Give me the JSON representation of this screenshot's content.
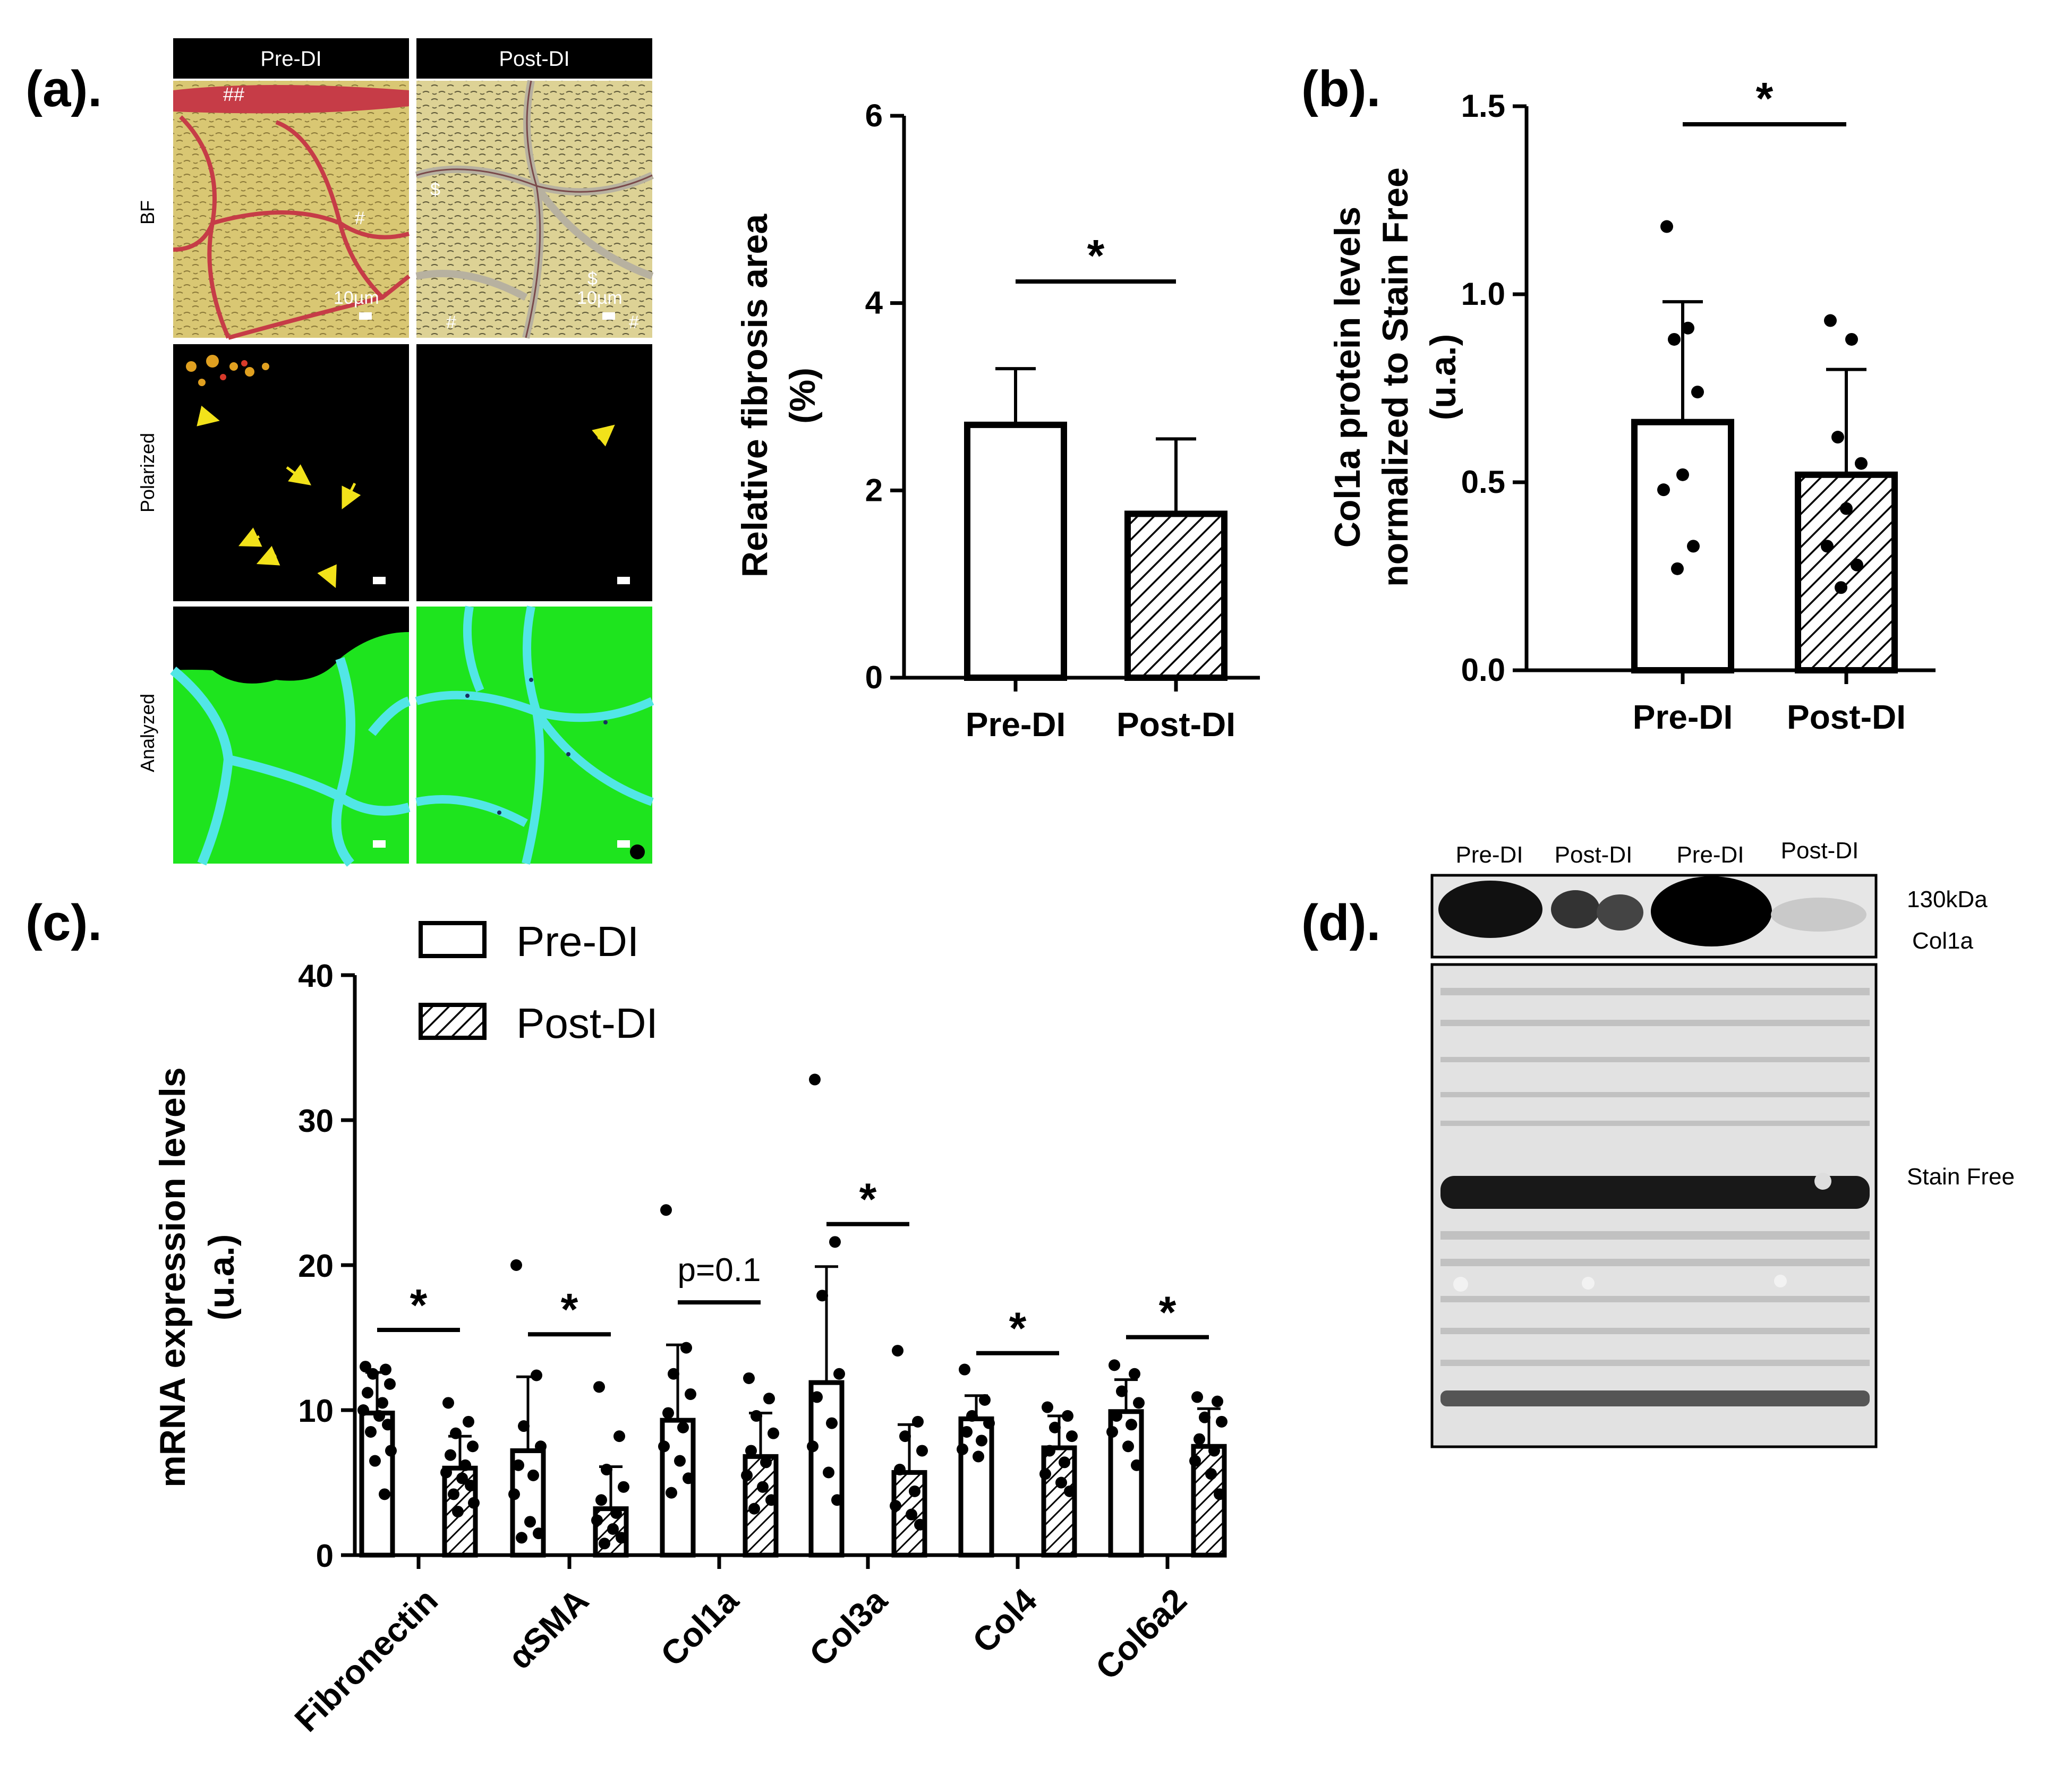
{
  "panel_labels": {
    "a": "(a).",
    "b": "(b).",
    "c": "(c).",
    "d": "(d)."
  },
  "histology": {
    "columns": [
      "Pre-DI",
      "Post-DI"
    ],
    "rows": [
      "BF",
      "Polarized",
      "Analyzed"
    ],
    "overlay_marks": {
      "double_hash": "##",
      "hash": "#",
      "dollar": "$"
    },
    "scale_bar": "10µm",
    "colors": {
      "bf_background": "#d9c773",
      "bf_collagen": "#c63c47",
      "polarized_background": "#000000",
      "arrow": "#f2e21a",
      "analyzed_fiber": "#1ee41e",
      "analyzed_collagen": "#52e6e6"
    }
  },
  "chart_data": [
    {
      "panel": "a",
      "type": "bar",
      "categories": [
        "Pre-DI",
        "Post-DI"
      ],
      "values": [
        2.7,
        1.75
      ],
      "errors": [
        0.6,
        0.8
      ],
      "fill_patterns": [
        "open",
        "hatched"
      ],
      "ylabel": "Relative fibrosis area (%)",
      "ylabel_lines": [
        "Relative fibrosis area",
        "(%)"
      ],
      "ylim": [
        0,
        6
      ],
      "yticks": [
        0,
        2,
        4,
        6
      ],
      "significance": [
        {
          "between": [
            "Pre-DI",
            "Post-DI"
          ],
          "label": "*"
        }
      ]
    },
    {
      "panel": "b",
      "type": "bar",
      "categories": [
        "Pre-DI",
        "Post-DI"
      ],
      "values": [
        0.66,
        0.52
      ],
      "errors": [
        0.32,
        0.28
      ],
      "points": [
        [
          1.18,
          0.91,
          0.88,
          0.74,
          0.52,
          0.48,
          0.33,
          0.27
        ],
        [
          0.93,
          0.88,
          0.62,
          0.55,
          0.43,
          0.33,
          0.28,
          0.22
        ]
      ],
      "fill_patterns": [
        "open",
        "hatched"
      ],
      "ylabel": "Col1a protein levels normalized to Stain Free (u.a.)",
      "ylabel_lines": [
        "Col1a protein levels",
        "normalized to Stain Free",
        "(u.a.)"
      ],
      "ylim": [
        0,
        1.5
      ],
      "yticks": [
        "0.0",
        "0.5",
        "1.0",
        "1.5"
      ],
      "significance": [
        {
          "between": [
            "Pre-DI",
            "Post-DI"
          ],
          "label": "*"
        }
      ]
    },
    {
      "panel": "c",
      "type": "bar",
      "categories": [
        "Fibronectin",
        "αSMA",
        "Col1a",
        "Col3a",
        "Col4",
        "Col6a2"
      ],
      "series": [
        {
          "name": "Pre-DI",
          "values": [
            9.8,
            7.2,
            9.3,
            11.9,
            9.4,
            9.9
          ],
          "errors": [
            2.8,
            5.1,
            5.2,
            8.0,
            1.6,
            2.2
          ],
          "points": [
            [
              13,
              12.8,
              12.5,
              11.8,
              11.2,
              10.5,
              10,
              9.6,
              9,
              8.5,
              7.2,
              6.5,
              4.2
            ],
            [
              20,
              12.4,
              8.9,
              7.5,
              6.2,
              5.5,
              4.2,
              2.3,
              1.5,
              1.2
            ],
            [
              23.8,
              14.3,
              12.5,
              11.1,
              9.8,
              8.8,
              7.5,
              6.5,
              5.3,
              4.3
            ],
            [
              32.8,
              21.6,
              17.9,
              12.5,
              10.9,
              9.1,
              7.5,
              5.7,
              3.8
            ],
            [
              12.8,
              10.7,
              9.6,
              9.1,
              8.5,
              7.9,
              7.3,
              6.8
            ],
            [
              13.1,
              12.5,
              11.3,
              10.5,
              9.6,
              9,
              8.5,
              7.5,
              6.2
            ]
          ]
        },
        {
          "name": "Post-DI",
          "values": [
            6.0,
            3.2,
            6.8,
            5.7,
            7.4,
            7.5
          ],
          "errors": [
            2.2,
            2.9,
            3.0,
            3.3,
            2.2,
            2.6
          ],
          "points": [
            [
              10.5,
              9.2,
              8.4,
              7.5,
              6.9,
              6.2,
              5.7,
              5.3,
              4.8,
              4.2,
              3.6,
              3.0
            ],
            [
              11.6,
              8.2,
              5.9,
              4.7,
              3.8,
              2.9,
              2.4,
              1.8,
              1.2,
              0.8
            ],
            [
              12.2,
              10.8,
              9.6,
              8.4,
              7.2,
              6.4,
              5.5,
              4.7,
              3.8,
              3.2
            ],
            [
              14.1,
              9.2,
              8.2,
              7.2,
              5.9,
              4.4,
              3.4,
              2.8,
              2.1
            ],
            [
              10.2,
              9.6,
              8.8,
              8.2,
              7.2,
              6.4,
              5.6,
              5.0,
              4.4
            ],
            [
              10.9,
              10.6,
              9.5,
              9.2,
              8.0,
              7.2,
              6.5,
              5.6,
              4.2
            ]
          ]
        }
      ],
      "ylabel": "mRNA expression levels (u.a.)",
      "ylabel_lines": [
        "mRNA expression levels",
        "(u.a.)"
      ],
      "ylim": [
        0,
        40
      ],
      "yticks": [
        0,
        10,
        20,
        30,
        40
      ],
      "legend": {
        "entries": [
          "Pre-DI",
          "Post-DI"
        ],
        "position": "top"
      },
      "significance": [
        {
          "category": "Fibronectin",
          "label": "*"
        },
        {
          "category": "αSMA",
          "label": "*"
        },
        {
          "category": "Col1a",
          "label": "p=0.1"
        },
        {
          "category": "Col3a",
          "label": "*"
        },
        {
          "category": "Col4",
          "label": "*"
        },
        {
          "category": "Col6a2",
          "label": "*"
        }
      ]
    }
  ],
  "blot": {
    "lanes": [
      "Pre-DI",
      "Post-DI",
      "Pre-DI",
      "Post-DI"
    ],
    "labels": {
      "size": "130kDa",
      "protein": "Col1a",
      "loading": "Stain Free"
    }
  }
}
